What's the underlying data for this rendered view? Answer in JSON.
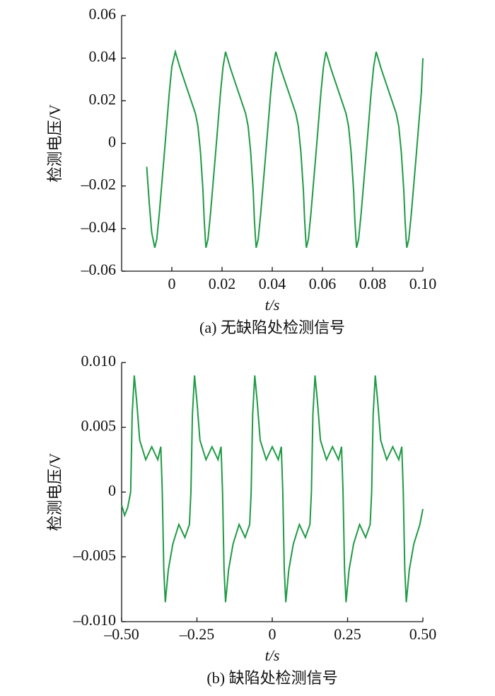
{
  "chart_data": [
    {
      "type": "line",
      "ylabel": "检测电压/V",
      "xlabel": "t/s",
      "caption": "(a) 无缺陷处检测信号",
      "xlim": [
        -0.02,
        0.1
      ],
      "ylim": [
        -0.06,
        0.06
      ],
      "xticks": [
        0,
        0.02,
        0.04,
        0.06,
        0.08,
        {
          "value": 0.1,
          "label": "0.10"
        }
      ],
      "yticks": [
        {
          "value": -0.06,
          "label": "–0.06"
        },
        {
          "value": -0.04,
          "label": "–0.04"
        },
        {
          "value": -0.02,
          "label": "–0.02"
        },
        0,
        0.02,
        0.04,
        0.06
      ],
      "series": [
        {
          "color": "#1f9a45",
          "x": [
            -0.01,
            -0.009,
            -0.008,
            -0.0068,
            -0.006,
            -0.005,
            -0.003,
            -0.001,
            0,
            0.0014,
            0.0034,
            0.0054,
            0.0074,
            0.0094,
            0.0104,
            0.0114,
            0.0124,
            0.0129,
            0.0134,
            0.0136,
            0.0144,
            0.0154,
            0.0174,
            0.0194,
            0.0204,
            0.0214,
            0.0234,
            0.0254,
            0.0274,
            0.0294,
            0.0304,
            0.0314,
            0.0324,
            0.0329,
            0.0334,
            0.0336,
            0.0344,
            0.0354,
            0.0374,
            0.0394,
            0.0404,
            0.0414,
            0.0434,
            0.0454,
            0.0474,
            0.0494,
            0.0504,
            0.0514,
            0.0524,
            0.0529,
            0.0534,
            0.0536,
            0.0544,
            0.0554,
            0.0574,
            0.0594,
            0.0604,
            0.0614,
            0.0634,
            0.0654,
            0.0674,
            0.0694,
            0.0704,
            0.0714,
            0.0724,
            0.0729,
            0.0734,
            0.0736,
            0.0744,
            0.0754,
            0.0774,
            0.0794,
            0.0804,
            0.0814,
            0.0834,
            0.0854,
            0.0874,
            0.0894,
            0.0904,
            0.0914,
            0.0924,
            0.0929,
            0.0934,
            0.0936,
            0.0944,
            0.0954,
            0.0974,
            0.0994,
            0.1
          ],
          "values": [
            -0.011,
            -0.028,
            -0.042,
            -0.049,
            -0.045,
            -0.033,
            -0.005,
            0.024,
            0.036,
            0.043,
            0.035,
            0.028,
            0.021,
            0.014,
            0.008,
            -0.004,
            -0.022,
            -0.036,
            -0.046,
            -0.049,
            -0.045,
            -0.033,
            -0.005,
            0.024,
            0.036,
            0.043,
            0.035,
            0.028,
            0.021,
            0.014,
            0.008,
            -0.004,
            -0.022,
            -0.036,
            -0.046,
            -0.049,
            -0.045,
            -0.033,
            -0.005,
            0.024,
            0.036,
            0.043,
            0.035,
            0.028,
            0.021,
            0.014,
            0.008,
            -0.004,
            -0.022,
            -0.036,
            -0.046,
            -0.049,
            -0.045,
            -0.033,
            -0.005,
            0.024,
            0.036,
            0.043,
            0.035,
            0.028,
            0.021,
            0.014,
            0.008,
            -0.004,
            -0.022,
            -0.036,
            -0.046,
            -0.049,
            -0.045,
            -0.033,
            -0.005,
            0.024,
            0.036,
            0.043,
            0.035,
            0.028,
            0.021,
            0.014,
            0.008,
            -0.004,
            -0.022,
            -0.036,
            -0.046,
            -0.049,
            -0.045,
            -0.033,
            -0.005,
            0.024,
            0.04
          ]
        }
      ]
    },
    {
      "type": "line",
      "ylabel": "检测电压/V",
      "xlabel": "t/s",
      "caption": "(b) 缺陷处检测信号",
      "xlim": [
        -0.5,
        0.5
      ],
      "ylim": [
        -0.01,
        0.01
      ],
      "xticks": [
        {
          "value": -0.5,
          "label": "–0.50"
        },
        {
          "value": -0.25,
          "label": "–0.25"
        },
        0,
        0.25,
        {
          "value": 0.5,
          "label": "0.50"
        }
      ],
      "yticks": [
        {
          "value": -0.01,
          "label": "–0.010"
        },
        {
          "value": -0.005,
          "label": "–0.005"
        },
        0,
        0.005,
        {
          "value": 0.01,
          "label": "0.010"
        }
      ],
      "series": [
        {
          "color": "#1f9a45",
          "x": [
            -0.5,
            -0.49,
            -0.48,
            -0.47,
            -0.465,
            -0.458,
            -0.45,
            -0.44,
            -0.42,
            -0.4,
            -0.38,
            -0.37,
            -0.365,
            -0.36,
            -0.355,
            -0.345,
            -0.33,
            -0.31,
            -0.29,
            -0.275,
            -0.27,
            -0.265,
            -0.258,
            -0.25,
            -0.24,
            -0.22,
            -0.2,
            -0.18,
            -0.17,
            -0.165,
            -0.16,
            -0.155,
            -0.145,
            -0.13,
            -0.11,
            -0.09,
            -0.075,
            -0.07,
            -0.065,
            -0.058,
            -0.05,
            -0.04,
            -0.02,
            0,
            0.02,
            0.03,
            0.035,
            0.04,
            0.045,
            0.055,
            0.07,
            0.09,
            0.11,
            0.125,
            0.13,
            0.135,
            0.142,
            0.15,
            0.16,
            0.18,
            0.2,
            0.22,
            0.23,
            0.235,
            0.24,
            0.245,
            0.255,
            0.27,
            0.29,
            0.31,
            0.325,
            0.33,
            0.335,
            0.342,
            0.35,
            0.36,
            0.38,
            0.4,
            0.42,
            0.43,
            0.435,
            0.44,
            0.445,
            0.455,
            0.47,
            0.49,
            0.5
          ],
          "values": [
            -0.001,
            -0.0018,
            -0.0012,
            0,
            0.006,
            0.009,
            0.007,
            0.004,
            0.0025,
            0.0035,
            0.0025,
            0.0035,
            0,
            -0.006,
            -0.0085,
            -0.006,
            -0.004,
            -0.0025,
            -0.0035,
            -0.0025,
            0,
            0.006,
            0.009,
            0.007,
            0.004,
            0.0025,
            0.0035,
            0.0025,
            0.0035,
            0,
            -0.006,
            -0.0085,
            -0.006,
            -0.004,
            -0.0025,
            -0.0035,
            -0.0025,
            0,
            0.006,
            0.009,
            0.007,
            0.004,
            0.0025,
            0.0035,
            0.0025,
            0.0035,
            0,
            -0.006,
            -0.0085,
            -0.006,
            -0.004,
            -0.0025,
            -0.0035,
            -0.0025,
            0,
            0.006,
            0.009,
            0.007,
            0.004,
            0.0025,
            0.0035,
            0.0025,
            0.0035,
            0,
            -0.006,
            -0.0085,
            -0.006,
            -0.004,
            -0.0025,
            -0.0035,
            -0.0025,
            0,
            0.006,
            0.009,
            0.007,
            0.004,
            0.0025,
            0.0035,
            0.0025,
            0.0035,
            0,
            -0.006,
            -0.0085,
            -0.006,
            -0.004,
            -0.0025,
            -0.0013
          ]
        }
      ]
    }
  ]
}
